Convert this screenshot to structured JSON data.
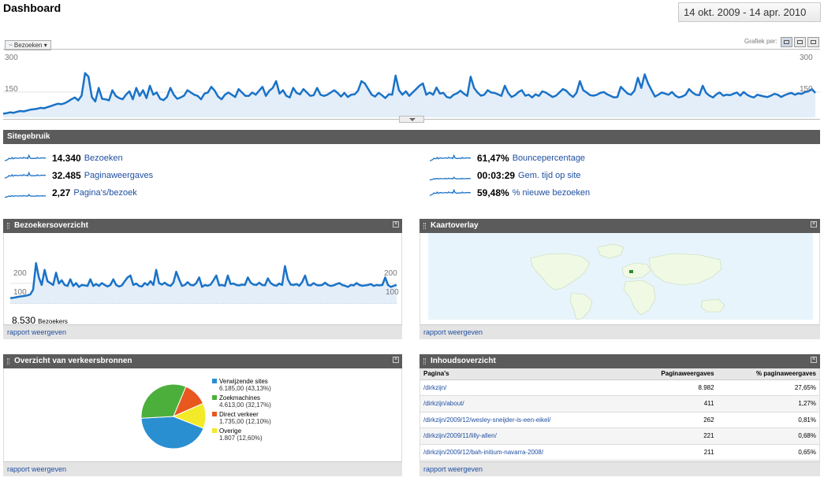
{
  "header": {
    "title": "Dashboard",
    "date_range": "14 okt. 2009 - 14 apr. 2010"
  },
  "main_graph": {
    "metric_label": "Bezoeken",
    "graph_by_label": "Grafiek per:",
    "y_ticks": [
      "300",
      "150"
    ],
    "line_color": "#1a72c7",
    "fill_color": "#e3eef9"
  },
  "chart_data": [
    {
      "type": "area",
      "name": "main-visits",
      "ylim": [
        0,
        300
      ],
      "y_ticks": [
        150,
        300
      ],
      "values": [
        16,
        18,
        22,
        20,
        24,
        28,
        26,
        30,
        34,
        36,
        38,
        42,
        40,
        45,
        50,
        55,
        60,
        58,
        62,
        70,
        80,
        88,
        75,
        96,
        196,
        180,
        90,
        70,
        130,
        82,
        80,
        75,
        120,
        95,
        85,
        80,
        100,
        115,
        80,
        130,
        95,
        120,
        85,
        140,
        100,
        110,
        82,
        76,
        90,
        130,
        100,
        82,
        88,
        96,
        120,
        110,
        100,
        95,
        80,
        105,
        110,
        135,
        118,
        92,
        80,
        100,
        110,
        100,
        90,
        125,
        110,
        95,
        95,
        110,
        100,
        118,
        135,
        95,
        118,
        130,
        160,
        105,
        120,
        95,
        88,
        130,
        108,
        102,
        125,
        110,
        95,
        98,
        130,
        100,
        95,
        100,
        110,
        120,
        108,
        92,
        108,
        90,
        100,
        102,
        118,
        160,
        150,
        125,
        100,
        92,
        108,
        98,
        85,
        102,
        100,
        185,
        120,
        100,
        115,
        95,
        110,
        125,
        140,
        150,
        100,
        110,
        100,
        132,
        105,
        108,
        90,
        86,
        100,
        106,
        118,
        105,
        95,
        180,
        130,
        110,
        96,
        100,
        120,
        110,
        108,
        102,
        95,
        140,
        108,
        90,
        98,
        112,
        120,
        96,
        100,
        88,
        102,
        95,
        115,
        110,
        100,
        90,
        96,
        110,
        125,
        118,
        102,
        90,
        108,
        160,
        120,
        110,
        98,
        96,
        100,
        108,
        112,
        102,
        95,
        88,
        90,
        135,
        120,
        105,
        100,
        118,
        175,
        130,
        190,
        150,
        120,
        92,
        100,
        110,
        105,
        100,
        112,
        96,
        88,
        92,
        100,
        125,
        110,
        100,
        98,
        140,
        108,
        96,
        88,
        102,
        110,
        96,
        100,
        98,
        104,
        110,
        96,
        112,
        100,
        92,
        88,
        100,
        96,
        92,
        90,
        96,
        104,
        100,
        90,
        98,
        104,
        108,
        100,
        106,
        104,
        112,
        115,
        125,
        108
      ]
    },
    {
      "type": "area",
      "name": "visitors-overview",
      "ylim": [
        0,
        250
      ],
      "y_ticks": [
        100,
        200
      ],
      "values": [
        30,
        32,
        35,
        38,
        40,
        42,
        45,
        50,
        75,
        216,
        140,
        100,
        180,
        120,
        110,
        100,
        165,
        108,
        125,
        100,
        95,
        130,
        95,
        110,
        90,
        100,
        98,
        95,
        130,
        95,
        105,
        95,
        110,
        100,
        92,
        100,
        130,
        100,
        92,
        98,
        120,
        140,
        150,
        100,
        108,
        95,
        92,
        110,
        100,
        120,
        100,
        180,
        110,
        102,
        112,
        100,
        95,
        112,
        170,
        130,
        95,
        100,
        115,
        100,
        98,
        110,
        140,
        90,
        100,
        96,
        102,
        125,
        150,
        98,
        100,
        95,
        150,
        105,
        108,
        100,
        98,
        102,
        100,
        140,
        112,
        102,
        100,
        112,
        100,
        98,
        135,
        110,
        100,
        96,
        108,
        100,
        200,
        130,
        102,
        100,
        105,
        96,
        115,
        150,
        100,
        98,
        110,
        100,
        98,
        100,
        112,
        100,
        95,
        98,
        105,
        110,
        100,
        96,
        90,
        100,
        98,
        110,
        100,
        96,
        98,
        100,
        105,
        95,
        100,
        98,
        100,
        140,
        100,
        90,
        96,
        100
      ]
    }
  ],
  "site_usage": {
    "title": "Sitegebruik",
    "stats": [
      {
        "value": "14.340",
        "label": "Bezoeken"
      },
      {
        "value": "32.485",
        "label": "Paginaweergaves"
      },
      {
        "value": "2,27",
        "label": "Pagina's/bezoek"
      },
      {
        "value": "61,47%",
        "label": "Bouncepercentage"
      },
      {
        "value": "00:03:29",
        "label": "Gem. tijd op site"
      },
      {
        "value": "59,48%",
        "label": "% nieuwe bezoeken"
      }
    ]
  },
  "visitors_panel": {
    "title": "Bezoekersoverzicht",
    "y_ticks": [
      "200",
      "100"
    ],
    "total": "8.530",
    "total_label": "Bezoekers",
    "footer_link": "rapport weergeven"
  },
  "map_panel": {
    "title": "Kaartoverlay",
    "footer_link": "rapport weergeven",
    "ocean_color": "#e8f4fb",
    "land_color": "#f0f9e4",
    "highlight_color": "#2e8b2e"
  },
  "traffic_panel": {
    "title": "Overzicht van verkeersbronnen",
    "footer_link": "rapport weergeven",
    "pie": [
      {
        "name": "Verwijzende sites",
        "detail": "6.185,00 (43,13%)",
        "pct": 43.13,
        "color": "#2a8fd0"
      },
      {
        "name": "Zoekmachines",
        "detail": "4.613,00 (32,17%)",
        "pct": 32.17,
        "color": "#4caf3c"
      },
      {
        "name": "Direct verkeer",
        "detail": "1.735,00 (12,10%)",
        "pct": 12.1,
        "color": "#e8581e"
      },
      {
        "name": "Overige",
        "detail": "1.807 (12,60%)",
        "pct": 12.6,
        "color": "#f2ea28"
      }
    ]
  },
  "content_panel": {
    "title": "Inhoudsoverzicht",
    "columns": [
      "Pagina's",
      "Paginaweergaves",
      "% paginaweergaves"
    ],
    "rows": [
      {
        "page": "/dirkzijn/",
        "views": "8.982",
        "pct": "27,65%"
      },
      {
        "page": "/dirkzijn/about/",
        "views": "411",
        "pct": "1,27%"
      },
      {
        "page": "/dirkzijn/2009/12/wesley-sneijder-is-een-eikel/",
        "views": "262",
        "pct": "0,81%"
      },
      {
        "page": "/dirkzijn/2009/11/lilly-allen/",
        "views": "221",
        "pct": "0,68%"
      },
      {
        "page": "/dirkzijn/2009/12/bah-initium-navarra-2008/",
        "views": "211",
        "pct": "0,65%"
      }
    ],
    "footer_link": "rapport weergeven"
  }
}
